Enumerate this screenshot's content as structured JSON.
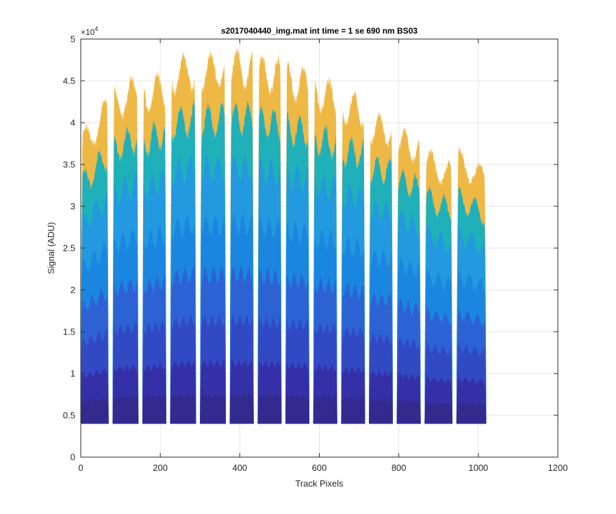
{
  "chart_data": {
    "type": "area",
    "title": "s2017040440_img.mat int time = 1 se  690 nm BS03",
    "xlabel": "Track Pixels",
    "ylabel": "Signal (ADU)",
    "xlim": [
      0,
      1200
    ],
    "ylim": [
      0,
      50000
    ],
    "xticks": [
      0,
      200,
      400,
      600,
      800,
      1000,
      1200
    ],
    "xtick_labels": [
      "0",
      "200",
      "400",
      "600",
      "800",
      "1000",
      "1200"
    ],
    "yticks": [
      0,
      5000,
      10000,
      15000,
      20000,
      25000,
      30000,
      35000,
      40000,
      45000,
      50000
    ],
    "ytick_labels": [
      "0",
      "0.5",
      "1",
      "1.5",
      "2",
      "2.5",
      "3",
      "3.5",
      "4",
      "4.5",
      "5"
    ],
    "y_multiplier_base": "×10",
    "y_multiplier_exp": "4",
    "grid": true,
    "baseline": 4000,
    "channels": [
      {
        "x_start": 0,
        "x_end": 70,
        "peak_start": 37000,
        "peak_end": 41500
      },
      {
        "x_start": 80,
        "x_end": 145,
        "peak_start": 42000,
        "peak_end": 44000
      },
      {
        "x_start": 155,
        "x_end": 215,
        "peak_start": 43000,
        "peak_end": 44500
      },
      {
        "x_start": 225,
        "x_end": 290,
        "peak_start": 45500,
        "peak_end": 46500
      },
      {
        "x_start": 300,
        "x_end": 365,
        "peak_start": 46000,
        "peak_end": 46500
      },
      {
        "x_start": 375,
        "x_end": 435,
        "peak_start": 46500,
        "peak_end": 46500
      },
      {
        "x_start": 445,
        "x_end": 505,
        "peak_start": 46000,
        "peak_end": 45500
      },
      {
        "x_start": 515,
        "x_end": 575,
        "peak_start": 45000,
        "peak_end": 44500
      },
      {
        "x_start": 585,
        "x_end": 645,
        "peak_start": 43500,
        "peak_end": 43000
      },
      {
        "x_start": 655,
        "x_end": 715,
        "peak_start": 42000,
        "peak_end": 41500
      },
      {
        "x_start": 725,
        "x_end": 785,
        "peak_start": 39500,
        "peak_end": 39000
      },
      {
        "x_start": 795,
        "x_end": 855,
        "peak_start": 38000,
        "peak_end": 36500
      },
      {
        "x_start": 865,
        "x_end": 935,
        "peak_start": 35500,
        "peak_end": 33500
      },
      {
        "x_start": 945,
        "x_end": 1020,
        "peak_start": 35500,
        "peak_end": 33000
      }
    ],
    "layer_fractions": [
      1.0,
      0.86,
      0.72,
      0.56,
      0.42,
      0.29,
      0.17,
      0.08
    ],
    "layer_colors": [
      "#eeb845",
      "#1fb0ba",
      "#2399e0",
      "#1b86e0",
      "#2d62d5",
      "#3249c4",
      "#3530a8",
      "#322a8e"
    ]
  }
}
